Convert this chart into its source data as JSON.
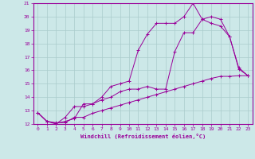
{
  "background_color": "#cce8e8",
  "line_color": "#990099",
  "grid_color": "#aacccc",
  "xlabel": "Windchill (Refroidissement éolien,°C)",
  "xlabel_color": "#990099",
  "tick_color": "#990099",
  "xlim": [
    -0.5,
    23.5
  ],
  "ylim": [
    12,
    21
  ],
  "yticks": [
    12,
    13,
    14,
    15,
    16,
    17,
    18,
    19,
    20,
    21
  ],
  "xticks": [
    0,
    1,
    2,
    3,
    4,
    5,
    6,
    7,
    8,
    9,
    10,
    11,
    12,
    13,
    14,
    15,
    16,
    17,
    18,
    19,
    20,
    21,
    22,
    23
  ],
  "line1_x": [
    0,
    1,
    2,
    3,
    4,
    5,
    6,
    7,
    8,
    9,
    10,
    11,
    12,
    13,
    14,
    15,
    16,
    17,
    18,
    19,
    20,
    21,
    22,
    23
  ],
  "line1_y": [
    12.85,
    12.2,
    12.05,
    12.2,
    12.4,
    13.5,
    13.5,
    14.0,
    14.8,
    15.0,
    15.2,
    17.5,
    18.7,
    19.5,
    19.5,
    19.5,
    20.0,
    21.0,
    19.8,
    19.5,
    19.3,
    18.5,
    16.2,
    15.6
  ],
  "line2_x": [
    0,
    1,
    2,
    3,
    4,
    5,
    6,
    7,
    8,
    9,
    10,
    11,
    12,
    13,
    14,
    15,
    16,
    17,
    18,
    19,
    20,
    21,
    22,
    23
  ],
  "line2_y": [
    12.85,
    12.2,
    12.0,
    12.5,
    13.3,
    13.3,
    13.5,
    13.8,
    14.0,
    14.4,
    14.6,
    14.6,
    14.8,
    14.6,
    14.6,
    17.4,
    18.8,
    18.8,
    19.8,
    20.0,
    19.8,
    18.5,
    16.1,
    15.6
  ],
  "line3_x": [
    0,
    1,
    2,
    3,
    4,
    5,
    6,
    7,
    8,
    9,
    10,
    11,
    12,
    13,
    14,
    15,
    16,
    17,
    18,
    19,
    20,
    21,
    22,
    23
  ],
  "line3_y": [
    12.85,
    12.2,
    12.1,
    12.1,
    12.5,
    12.5,
    12.8,
    13.0,
    13.2,
    13.4,
    13.6,
    13.8,
    14.0,
    14.2,
    14.4,
    14.6,
    14.8,
    15.0,
    15.2,
    15.4,
    15.55,
    15.55,
    15.6,
    15.6
  ],
  "marker": "+"
}
